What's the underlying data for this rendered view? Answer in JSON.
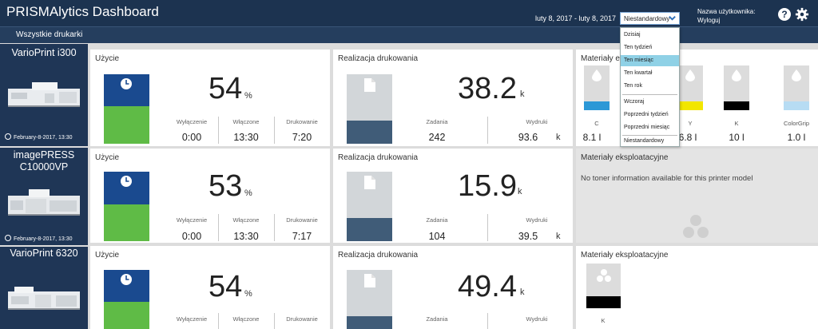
{
  "header": {
    "title": "PRISMAlytics Dashboard",
    "date_range": "luty 8, 2017 - luty 8, 2017",
    "range_selected": "Niestandardowy",
    "user_label": "Nazwa użytkownika:",
    "logout": "Wyloguj",
    "help": "?"
  },
  "subbar": {
    "label": "Wszystkie drukarki"
  },
  "dropdown": {
    "options": [
      "Dzisiaj",
      "Ten tydzień",
      "Ten miesiąc",
      "Ten kwartał",
      "Ten rok",
      "Wczoraj",
      "Poprzedni tydzień",
      "Poprzedni miesiąc",
      "Niestandardowy"
    ],
    "highlighted": "Ten miesiąc"
  },
  "printers": [
    {
      "name": "VarioPrint i300",
      "date": "February-8-2017, 13:30",
      "usage": {
        "title": "Użycie",
        "value": "54",
        "unit": "%",
        "percent": 54,
        "off_label": "Wyłączenie",
        "off_value": "0:00",
        "on_label": "Włączone",
        "on_value": "13:30",
        "print_label": "Drukowanie",
        "print_value": "7:20"
      },
      "printing": {
        "title": "Realizacja drukowania",
        "value": "38.2",
        "unit": "k",
        "fill": 0.33,
        "jobs_label": "Zadania",
        "jobs_value": "242",
        "prints_label": "Wydruki",
        "prints_value": "93.6",
        "prints_unit": "k"
      },
      "consumables": {
        "title": "Materiały eksploatacyjne",
        "toners": [
          {
            "label": "C",
            "value": "8.1 l",
            "color": "#2c98d6"
          },
          {
            "label": "Y",
            "value": "6.8 l",
            "color": "#f2e600"
          },
          {
            "label": "K",
            "value": "10 l",
            "color": "#000000"
          },
          {
            "label": "ColorGrip",
            "value": "1.0 l",
            "color": "#b7dcf3"
          }
        ]
      }
    },
    {
      "name_line1": "imagePRESS",
      "name_line2": "C10000VP",
      "date": "February-8-2017, 13:30",
      "usage": {
        "title": "Użycie",
        "value": "53",
        "unit": "%",
        "percent": 53,
        "off_label": "Wyłączenie",
        "off_value": "0:00",
        "on_label": "Włączone",
        "on_value": "13:30",
        "print_label": "Drukowanie",
        "print_value": "7:17"
      },
      "printing": {
        "title": "Realizacja drukowania",
        "value": "15.9",
        "unit": "k",
        "fill": 0.33,
        "jobs_label": "Zadania",
        "jobs_value": "104",
        "prints_label": "Wydruki",
        "prints_value": "39.5",
        "prints_unit": "k"
      },
      "consumables": {
        "title": "Materiały eksploatacyjne",
        "message": "No toner information available for this printer model"
      }
    },
    {
      "name": "VarioPrint 6320",
      "usage": {
        "title": "Użycie",
        "value": "54",
        "unit": "%",
        "percent": 54,
        "off_label": "Wyłączenie",
        "on_label": "Włączone",
        "print_label": "Drukowanie"
      },
      "printing": {
        "title": "Realizacja drukowania",
        "value": "49.4",
        "unit": "k",
        "fill": 0.33,
        "jobs_label": "Zadania",
        "prints_label": "Wydruki"
      },
      "consumables": {
        "title": "Materiały eksploatacyjne",
        "toners": [
          {
            "label": "K",
            "color": "#000000"
          }
        ]
      }
    }
  ],
  "colors": {
    "header": "#1c3350",
    "usage_blue": "#1a4a8f",
    "usage_green": "#5fbb46",
    "print_fill": "#405c78",
    "highlight": "#8fd1e6"
  }
}
